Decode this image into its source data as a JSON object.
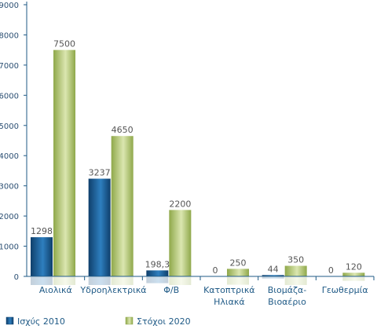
{
  "chart_data": {
    "type": "bar",
    "categories": [
      [
        "Αιολικά"
      ],
      [
        "Υδροηλεκτρικά"
      ],
      [
        "Φ/Β"
      ],
      [
        "Κατοπτρικά",
        "Ηλιακά"
      ],
      [
        "Βιομάζα-",
        "Βιοαέριο"
      ],
      [
        "Γεωθερμία"
      ]
    ],
    "series": [
      {
        "name": "Ισχύς 2010",
        "values": [
          1298,
          3237,
          198.3,
          0,
          44,
          0
        ],
        "labels": [
          "1298",
          "3237",
          "198,3",
          "0",
          "44",
          "0"
        ]
      },
      {
        "name": "Στόχοι 2020",
        "values": [
          7500,
          4650,
          2200,
          250,
          350,
          120
        ],
        "labels": [
          "7500",
          "4650",
          "2200",
          "250",
          "350",
          "120"
        ]
      }
    ],
    "yticks": [
      "0",
      "1000",
      "2000",
      "3000",
      "4000",
      "5000",
      "6000",
      "7000",
      "8000",
      "9000"
    ],
    "ylim": [
      0,
      9000
    ],
    "grid": false,
    "legend_position": "bottom",
    "colors": {
      "series1_dark": "#0f3f6b",
      "series1_light": "#2e7fbf",
      "series2_dark": "#8fa84a",
      "series2_light": "#dbe6b0",
      "axis": "#1f5a86",
      "text": "#1f5a86"
    }
  }
}
